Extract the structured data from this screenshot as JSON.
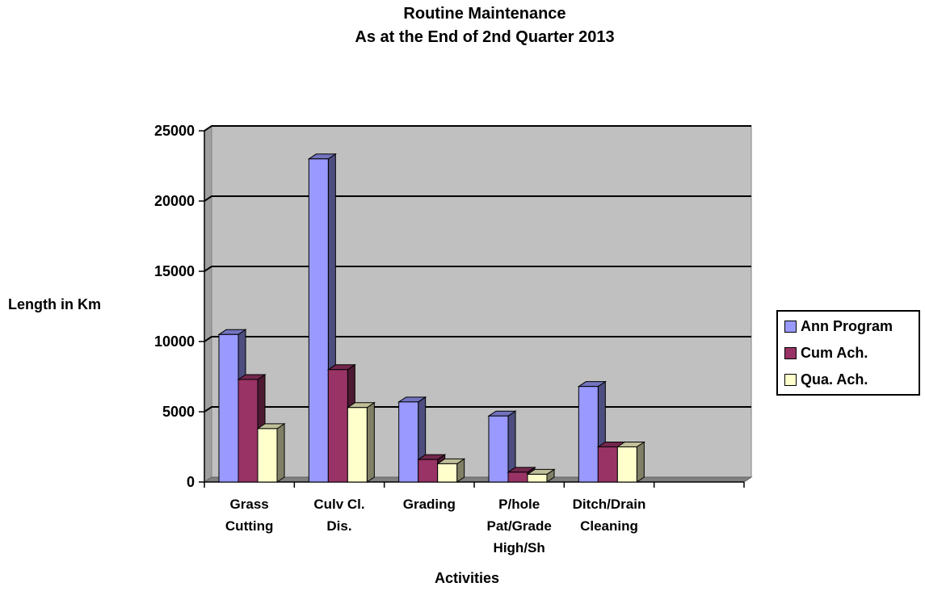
{
  "chart_data": {
    "type": "bar",
    "title": "Routine Maintenance",
    "subtitle": "As at the End of 2nd Quarter  2013",
    "xlabel": "Activities",
    "ylabel": "Length in Km",
    "ylim": [
      0,
      25000
    ],
    "yticks": [
      "0",
      "5000",
      "10000",
      "15000",
      "20000",
      "25000"
    ],
    "categories": [
      "Grass\nCutting",
      "Culv Cl.\nDis.",
      "Grading",
      "P/hole\nPat/Grade\nHigh/Sh",
      "Ditch/Drain\nCleaning",
      ""
    ],
    "series": [
      {
        "name": "Ann Program",
        "color": "#9999ff",
        "values": [
          10500,
          23000,
          5700,
          4700,
          6800,
          null
        ]
      },
      {
        "name": "Cum Ach.",
        "color": "#993366",
        "values": [
          7300,
          8000,
          1600,
          700,
          2500,
          null
        ]
      },
      {
        "name": "Qua. Ach.",
        "color": "#ffffcc",
        "values": [
          3800,
          5300,
          1300,
          550,
          2500,
          null
        ]
      }
    ],
    "grid": true,
    "legend_position": "right"
  }
}
